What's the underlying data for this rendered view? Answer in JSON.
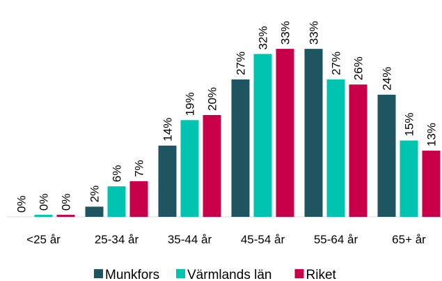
{
  "chart_data": {
    "type": "bar",
    "categories": [
      "<25 år",
      "25-34 år",
      "35-44 år",
      "45-54 år",
      "55-64 år",
      "65+ år"
    ],
    "series": [
      {
        "name": "Munkfors",
        "color": "#1f5560",
        "values": [
          0,
          2,
          14,
          27,
          33,
          24
        ],
        "value_labels": [
          "0%",
          "2%",
          "14%",
          "27%",
          "33%",
          "24%"
        ]
      },
      {
        "name": "Värmlands län",
        "color": "#00c4b0",
        "values": [
          0.4,
          6,
          19,
          32,
          27,
          15
        ],
        "value_labels": [
          "0%",
          "6%",
          "19%",
          "32%",
          "27%",
          "15%"
        ]
      },
      {
        "name": "Riket",
        "color": "#c8004a",
        "values": [
          0.4,
          7,
          20,
          33,
          26,
          13
        ],
        "value_labels": [
          "0%",
          "7%",
          "20%",
          "33%",
          "26%",
          "13%"
        ]
      }
    ],
    "legend": "bottom"
  }
}
